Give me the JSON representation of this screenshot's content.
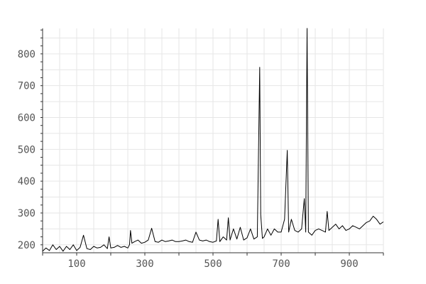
{
  "chart_data": {
    "type": "line",
    "title": "",
    "xlabel": "",
    "ylabel": "",
    "xlim": [
      0,
      1000
    ],
    "ylim": [
      175,
      880
    ],
    "x_ticks": [
      100,
      300,
      500,
      700,
      900
    ],
    "y_ticks": [
      200,
      300,
      400,
      500,
      600,
      700,
      800
    ],
    "grid": true,
    "line_color": "#000000",
    "series": [
      {
        "values": [
          [
            0,
            180
          ],
          [
            10,
            190
          ],
          [
            20,
            182
          ],
          [
            30,
            200
          ],
          [
            40,
            185
          ],
          [
            50,
            195
          ],
          [
            60,
            180
          ],
          [
            70,
            195
          ],
          [
            80,
            185
          ],
          [
            90,
            200
          ],
          [
            100,
            182
          ],
          [
            110,
            192
          ],
          [
            120,
            230
          ],
          [
            130,
            188
          ],
          [
            140,
            185
          ],
          [
            150,
            195
          ],
          [
            160,
            190
          ],
          [
            170,
            192
          ],
          [
            180,
            200
          ],
          [
            190,
            188
          ],
          [
            195,
            225
          ],
          [
            200,
            190
          ],
          [
            210,
            192
          ],
          [
            220,
            198
          ],
          [
            230,
            192
          ],
          [
            240,
            195
          ],
          [
            250,
            190
          ],
          [
            255,
            200
          ],
          [
            258,
            245
          ],
          [
            262,
            205
          ],
          [
            270,
            210
          ],
          [
            280,
            215
          ],
          [
            290,
            205
          ],
          [
            300,
            208
          ],
          [
            310,
            215
          ],
          [
            320,
            252
          ],
          [
            330,
            210
          ],
          [
            340,
            208
          ],
          [
            350,
            215
          ],
          [
            360,
            210
          ],
          [
            370,
            212
          ],
          [
            380,
            215
          ],
          [
            390,
            210
          ],
          [
            400,
            210
          ],
          [
            410,
            212
          ],
          [
            420,
            215
          ],
          [
            430,
            210
          ],
          [
            440,
            208
          ],
          [
            450,
            240
          ],
          [
            460,
            215
          ],
          [
            470,
            212
          ],
          [
            480,
            215
          ],
          [
            490,
            210
          ],
          [
            500,
            208
          ],
          [
            510,
            212
          ],
          [
            515,
            280
          ],
          [
            520,
            210
          ],
          [
            530,
            225
          ],
          [
            540,
            215
          ],
          [
            545,
            285
          ],
          [
            550,
            215
          ],
          [
            560,
            250
          ],
          [
            570,
            218
          ],
          [
            580,
            255
          ],
          [
            590,
            215
          ],
          [
            600,
            222
          ],
          [
            610,
            250
          ],
          [
            620,
            218
          ],
          [
            630,
            225
          ],
          [
            637,
            758
          ],
          [
            640,
            295
          ],
          [
            645,
            220
          ],
          [
            650,
            225
          ],
          [
            660,
            250
          ],
          [
            670,
            230
          ],
          [
            680,
            250
          ],
          [
            690,
            240
          ],
          [
            700,
            240
          ],
          [
            710,
            280
          ],
          [
            718,
            497
          ],
          [
            722,
            240
          ],
          [
            730,
            280
          ],
          [
            740,
            245
          ],
          [
            750,
            240
          ],
          [
            760,
            250
          ],
          [
            768,
            345
          ],
          [
            772,
            240
          ],
          [
            776,
            880
          ],
          [
            780,
            240
          ],
          [
            790,
            230
          ],
          [
            800,
            245
          ],
          [
            810,
            250
          ],
          [
            820,
            245
          ],
          [
            830,
            240
          ],
          [
            835,
            305
          ],
          [
            840,
            245
          ],
          [
            850,
            255
          ],
          [
            860,
            265
          ],
          [
            870,
            250
          ],
          [
            880,
            260
          ],
          [
            890,
            245
          ],
          [
            900,
            250
          ],
          [
            910,
            260
          ],
          [
            920,
            255
          ],
          [
            930,
            250
          ],
          [
            940,
            260
          ],
          [
            950,
            270
          ],
          [
            960,
            275
          ],
          [
            970,
            290
          ],
          [
            980,
            280
          ],
          [
            990,
            265
          ],
          [
            1000,
            272
          ]
        ]
      }
    ]
  }
}
